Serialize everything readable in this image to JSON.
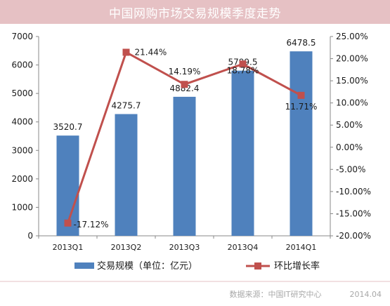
{
  "chart_data": {
    "type": "bar",
    "title": "中国网购市场交易规模季度走势",
    "categories": [
      "2013Q1",
      "2013Q2",
      "2013Q3",
      "2013Q4",
      "2014Q1"
    ],
    "series": [
      {
        "name": "交易规模（单位：亿元）",
        "type": "bar",
        "axis": "left",
        "values": [
          3520.7,
          4275.7,
          4882.4,
          5799.5,
          6478.5
        ],
        "labels": [
          "3520.7",
          "4275.7",
          "4882.4",
          "5799.5",
          "6478.5"
        ]
      },
      {
        "name": "环比增长率",
        "type": "line",
        "axis": "right",
        "values": [
          -17.12,
          21.44,
          14.19,
          18.78,
          11.71
        ],
        "labels": [
          "-17.12%",
          "21.44%",
          "14.19%",
          "18.78%",
          "11.71%"
        ]
      }
    ],
    "y_left": {
      "lim": [
        0,
        7000
      ],
      "ticks": [
        "0",
        "1000",
        "2000",
        "3000",
        "4000",
        "5000",
        "6000",
        "7000"
      ]
    },
    "y_right": {
      "lim": [
        -20,
        25
      ],
      "ticks": [
        "-20.00%",
        "-15.00%",
        "-10.00%",
        "-5.00%",
        "0.00%",
        "5.00%",
        "10.00%",
        "15.00%",
        "20.00%",
        "25.00%"
      ]
    },
    "legend_position": "bottom",
    "grid": false
  },
  "source": {
    "text": "数据来源：中国IT研究中心",
    "date": "2014.04"
  },
  "colors": {
    "title_bg": "#e6c1c4",
    "bar": "#4f81bd",
    "line": "#c0504d",
    "axis": "#888888",
    "text": "#1a1a1a",
    "divider": "#e6c1c4"
  }
}
